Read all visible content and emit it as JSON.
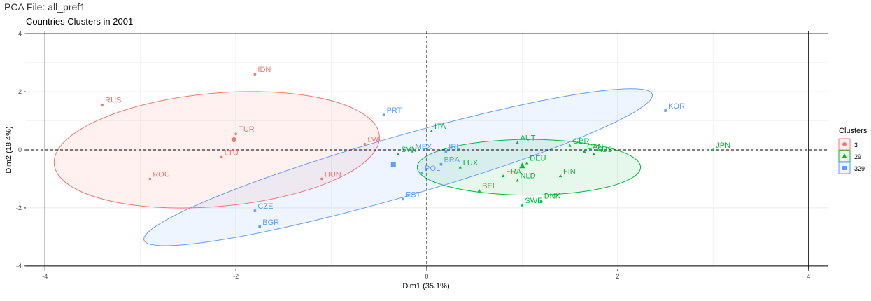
{
  "page": {
    "title": "PCA File: all_pref1"
  },
  "chart_data": {
    "type": "scatter",
    "title": "Countries Clusters in 2001",
    "xlabel": "Dim1 (35.1%)",
    "ylabel": "Dim2 (18.4%)",
    "xlim": [
      -4.2,
      4.2
    ],
    "ylim": [
      -4.1,
      4.1
    ],
    "xticks": [
      -4,
      -2,
      0,
      2,
      4
    ],
    "yticks": [
      -4,
      -2,
      0,
      2,
      4
    ],
    "grid": true,
    "legend": {
      "title": "Clusters",
      "position": "right"
    },
    "series": [
      {
        "name": "3",
        "color": "#F8766D",
        "marker": "circle",
        "centroid": [
          -2.02,
          0.35
        ],
        "ellipse": {
          "cx": -2.2,
          "cy": 0.0,
          "rx": 1.71,
          "ry": 1.95,
          "angle": 5
        },
        "points": [
          {
            "label": "IDN",
            "x": -1.8,
            "y": 2.6
          },
          {
            "label": "RUS",
            "x": -3.4,
            "y": 1.55
          },
          {
            "label": "TUR",
            "x": -2.0,
            "y": 0.55
          },
          {
            "label": "LVA",
            "x": -0.65,
            "y": 0.2
          },
          {
            "label": "LTU",
            "x": -2.15,
            "y": -0.25
          },
          {
            "label": "ROU",
            "x": -2.9,
            "y": -1.0
          },
          {
            "label": "HUN",
            "x": -1.1,
            "y": -1.0
          }
        ]
      },
      {
        "name": "29",
        "color": "#00BA38",
        "marker": "triangle",
        "centroid": [
          1.0,
          -0.55
        ],
        "ellipse": {
          "cx": 1.07,
          "cy": -0.6,
          "rx": 1.17,
          "ry": 0.96,
          "angle": 0
        },
        "points": [
          {
            "label": "ITA",
            "x": 0.05,
            "y": 0.65
          },
          {
            "label": "AUT",
            "x": 0.95,
            "y": 0.25
          },
          {
            "label": "GBR",
            "x": 1.5,
            "y": 0.15
          },
          {
            "label": "CAN",
            "x": 1.65,
            "y": -0.05
          },
          {
            "label": "AUS",
            "x": 1.75,
            "y": -0.15
          },
          {
            "label": "JPN",
            "x": 3.0,
            "y": 0.0
          },
          {
            "label": "SVN",
            "x": -0.3,
            "y": -0.15
          },
          {
            "label": "DEU",
            "x": 1.05,
            "y": -0.45
          },
          {
            "label": "LUX",
            "x": 0.35,
            "y": -0.6
          },
          {
            "label": "FRA",
            "x": 0.8,
            "y": -0.9
          },
          {
            "label": "FIN",
            "x": 1.4,
            "y": -0.9
          },
          {
            "label": "NLD",
            "x": 0.95,
            "y": -1.05
          },
          {
            "label": "BEL",
            "x": 0.55,
            "y": -1.4
          },
          {
            "label": "DNK",
            "x": 1.2,
            "y": -1.75
          },
          {
            "label": "SWE",
            "x": 1.0,
            "y": -1.9
          }
        ]
      },
      {
        "name": "329",
        "color": "#619CFF",
        "marker": "square",
        "centroid": [
          -0.35,
          -0.5
        ],
        "ellipse": {
          "cx": -0.3,
          "cy": -0.6,
          "rx": 2.77,
          "ry": 1.04,
          "angle": 16
        },
        "points": [
          {
            "label": "PRT",
            "x": -0.45,
            "y": 1.2
          },
          {
            "label": "KOR",
            "x": 2.5,
            "y": 1.35
          },
          {
            "label": "MEX",
            "x": -0.15,
            "y": -0.05
          },
          {
            "label": "IRL",
            "x": 0.2,
            "y": -0.05
          },
          {
            "label": "BRA",
            "x": 0.15,
            "y": -0.5
          },
          {
            "label": "POL",
            "x": -0.05,
            "y": -0.8
          },
          {
            "label": "EST",
            "x": -0.25,
            "y": -1.7
          },
          {
            "label": "CZE",
            "x": -1.8,
            "y": -2.1
          },
          {
            "label": "BGR",
            "x": -1.75,
            "y": -2.65
          }
        ]
      }
    ]
  }
}
